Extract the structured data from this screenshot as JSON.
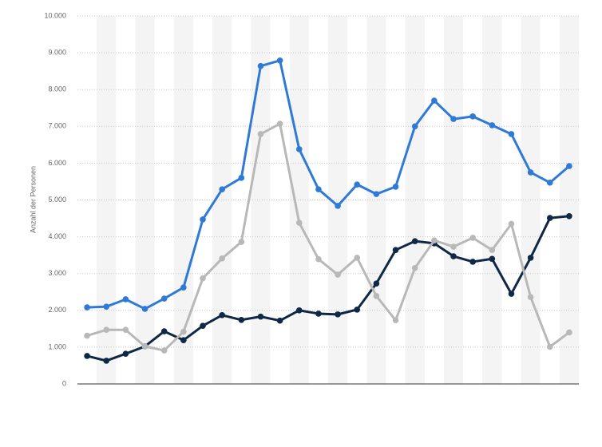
{
  "chart_data": {
    "type": "line",
    "y_label": "Anzahl der Personen",
    "categories": [
      null,
      null,
      null,
      null,
      null,
      null,
      null,
      null,
      null,
      null,
      null,
      null,
      null,
      null,
      null,
      null,
      null,
      null,
      null,
      null,
      null,
      null,
      null,
      null,
      null,
      null
    ],
    "series": [
      {
        "color": "#2f7ad6",
        "values": [
          2080,
          2100,
          2300,
          2040,
          2320,
          2620,
          4470,
          5290,
          5600,
          8640,
          8790,
          6380,
          5290,
          4840,
          5420,
          5160,
          5360,
          7000,
          7700,
          7200,
          7270,
          7030,
          6790,
          5750,
          5470,
          5920
        ]
      },
      {
        "color": "#0f2846",
        "values": [
          760,
          630,
          820,
          1020,
          1430,
          1190,
          1580,
          1870,
          1740,
          1830,
          1720,
          2000,
          1910,
          1890,
          2020,
          2730,
          3640,
          3880,
          3820,
          3470,
          3320,
          3400,
          2450,
          3430,
          4510,
          4560
        ]
      },
      {
        "color": "#b8b8b8",
        "values": [
          1310,
          1470,
          1470,
          1020,
          910,
          1420,
          2870,
          3410,
          3860,
          6790,
          7070,
          4380,
          3390,
          2970,
          3430,
          2390,
          1730,
          3150,
          3900,
          3730,
          3970,
          3640,
          4350,
          2360,
          1010,
          1400
        ]
      }
    ],
    "ylim": [
      0,
      10000
    ],
    "yticks": [
      0,
      {
        "value": 1000,
        "label": "1.000"
      },
      {
        "value": 2000,
        "label": "2.000"
      },
      {
        "value": 3000,
        "label": "3.000"
      },
      {
        "value": 4000,
        "label": "4.000"
      },
      {
        "value": 5000,
        "label": "5.000"
      },
      {
        "value": 6000,
        "label": "6.000"
      },
      {
        "value": 7000,
        "label": "7.000"
      },
      {
        "value": 8000,
        "label": "8.000"
      },
      {
        "value": 9000,
        "label": "9.000"
      },
      {
        "value": 10000,
        "label": "10.000"
      }
    ],
    "grid": true
  }
}
